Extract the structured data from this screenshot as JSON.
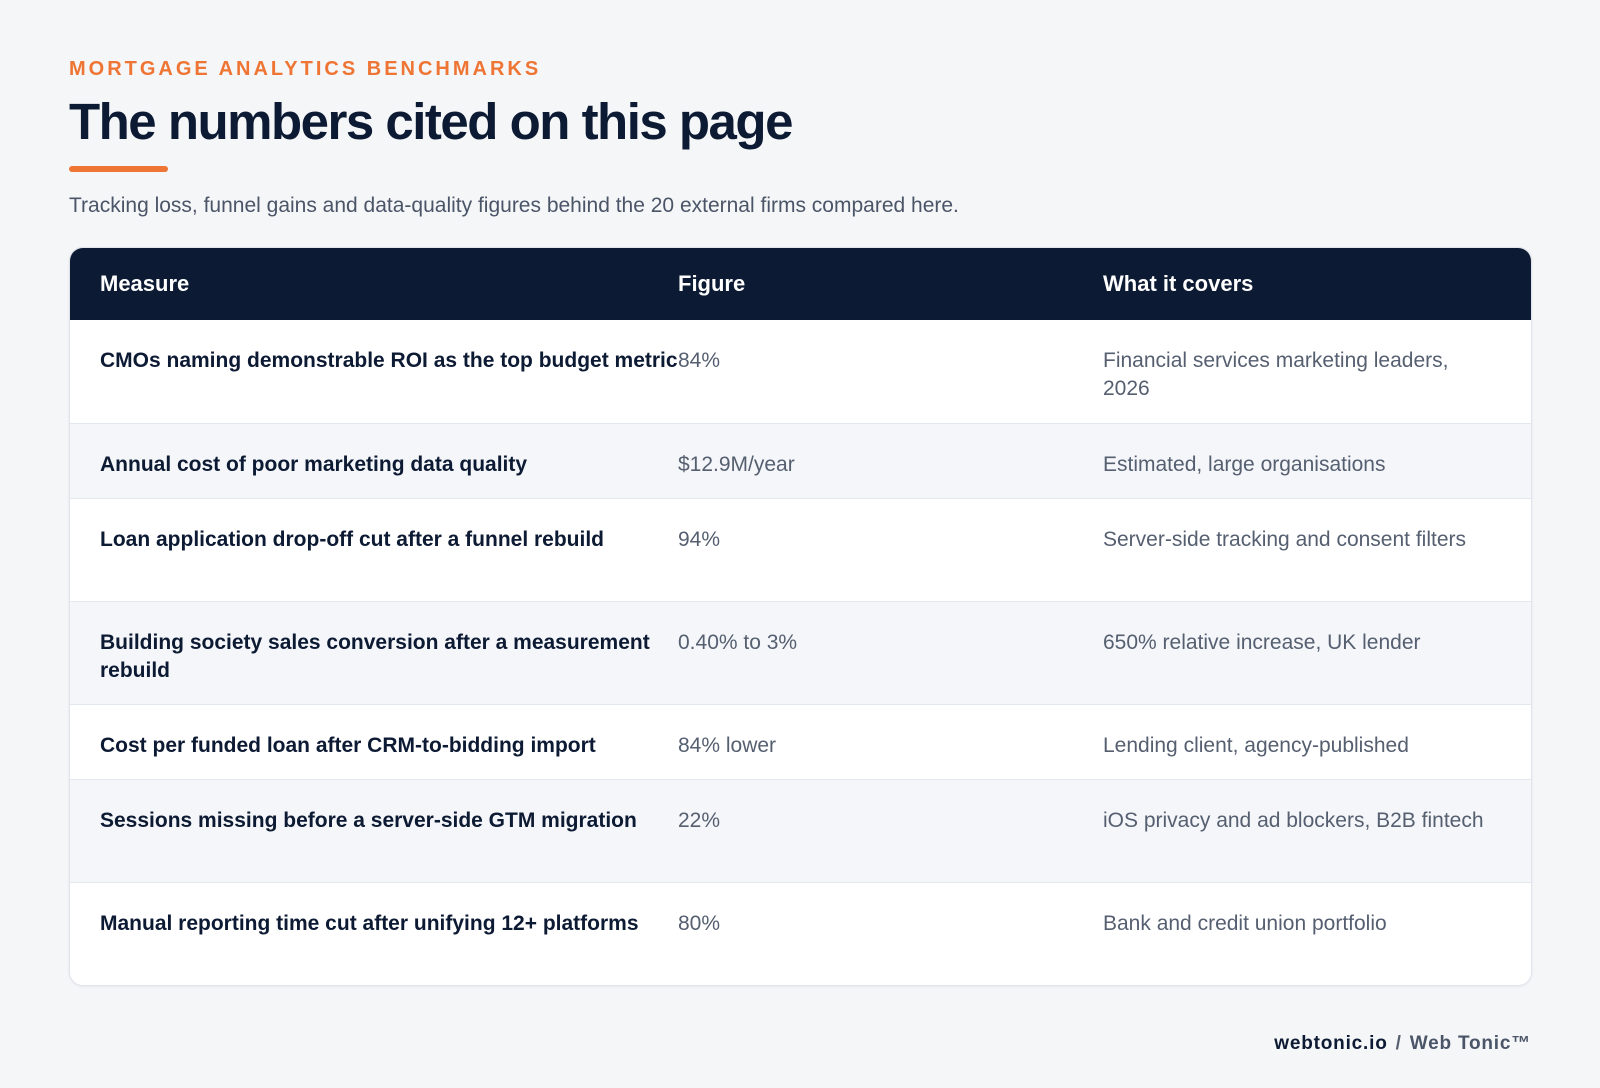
{
  "header": {
    "eyebrow": "MORTGAGE ANALYTICS BENCHMARKS",
    "title": "The numbers cited on this page",
    "subtitle": "Tracking loss, funnel gains and data-quality figures behind the 20 external firms compared here."
  },
  "table": {
    "columns": [
      "Measure",
      "Figure",
      "What it covers"
    ],
    "rows": [
      {
        "measure": "CMOs naming demonstrable ROI as the top budget metric",
        "figure": "84%",
        "covers": "Financial services marketing leaders, 2026"
      },
      {
        "measure": "Annual cost of poor marketing data quality",
        "figure": "$12.9M/year",
        "covers": "Estimated, large organisations"
      },
      {
        "measure": "Loan application drop-off cut after a funnel rebuild",
        "figure": "94%",
        "covers": "Server-side tracking and consent filters"
      },
      {
        "measure": "Building society sales conversion after a measurement rebuild",
        "figure": "0.40% to 3%",
        "covers": "650% relative increase, UK lender"
      },
      {
        "measure": "Cost per funded loan after CRM-to-bidding import",
        "figure": "84% lower",
        "covers": "Lending client, agency-published"
      },
      {
        "measure": "Sessions missing before a server-side GTM migration",
        "figure": "22%",
        "covers": "iOS privacy and ad blockers, B2B fintech"
      },
      {
        "measure": "Manual reporting time cut after unifying 12+ platforms",
        "figure": "80%",
        "covers": "Bank and credit union portfolio"
      }
    ]
  },
  "footer": {
    "site": "webtonic.io",
    "separator": "/",
    "brand": "Web Tonic™"
  },
  "colors": {
    "accent": "#ee7534",
    "navy": "#0c1a33",
    "background": "#f5f6f8"
  }
}
